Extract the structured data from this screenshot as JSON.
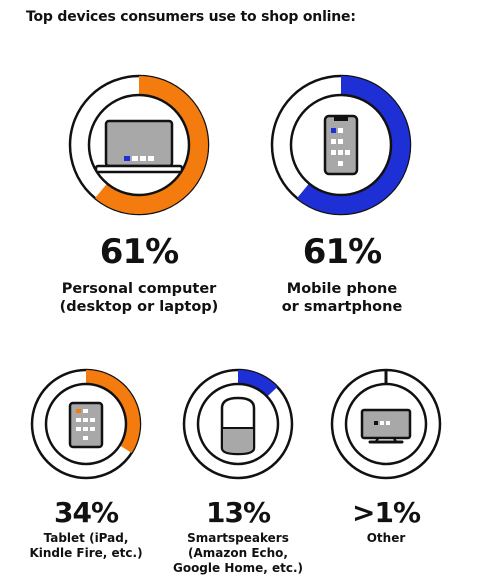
{
  "title": "Top devices consumers use to shop online:",
  "colors": {
    "orange": "#F47C0F",
    "blue": "#1F2FD6",
    "outline": "#111111",
    "device_gray": "#A8A8A8",
    "device_dark": "#2a2a2a"
  },
  "chart_data": {
    "type": "pie",
    "title": "Top devices consumers use to shop online:",
    "items": [
      {
        "label_lines": [
          "Personal computer",
          "(desktop or laptop)"
        ],
        "value": 61,
        "display": "61%",
        "color": "#F47C0F",
        "icon": "laptop-icon"
      },
      {
        "label_lines": [
          "Mobile phone",
          "or smartphone"
        ],
        "value": 61,
        "display": "61%",
        "color": "#1F2FD6",
        "icon": "smartphone-icon"
      },
      {
        "label_lines": [
          "Tablet (iPad,",
          "Kindle Fire, etc.)"
        ],
        "value": 34,
        "display": "34%",
        "color": "#F47C0F",
        "icon": "tablet-icon"
      },
      {
        "label_lines": [
          "Smartspeakers",
          "(Amazon Echo,",
          "Google Home, etc.)"
        ],
        "value": 13,
        "display": "13%",
        "color": "#1F2FD6",
        "icon": "smartspeaker-icon"
      },
      {
        "label_lines": [
          "Other"
        ],
        "value": 1,
        "display": ">1%",
        "color": "#111111",
        "icon": "tv-icon"
      }
    ]
  }
}
